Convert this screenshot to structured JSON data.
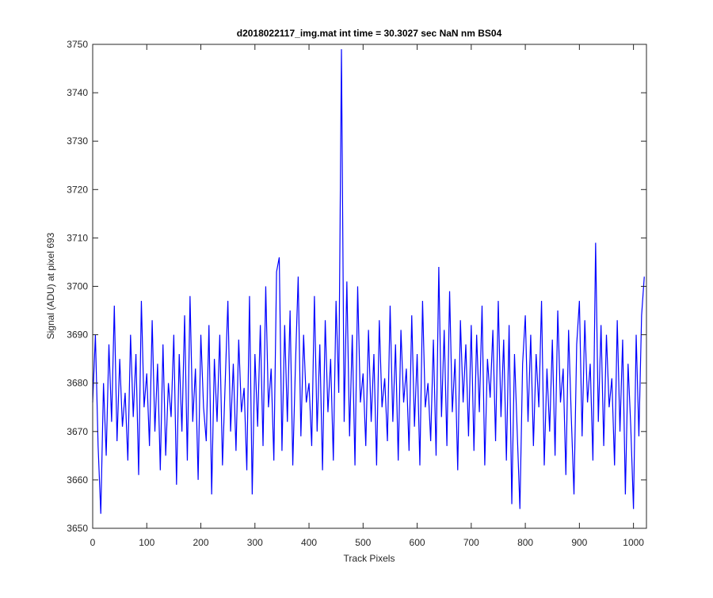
{
  "chart_data": {
    "type": "line",
    "title": "d2018022117_img.mat int time = 30.3027 sec  NaN nm BS04",
    "x_label": "Track Pixels",
    "y_label": "Signal (ADU) at pixel 693",
    "x": [
      0,
      5,
      10,
      15,
      20,
      25,
      30,
      35,
      40,
      45,
      50,
      55,
      60,
      65,
      70,
      75,
      80,
      85,
      90,
      95,
      100,
      105,
      110,
      115,
      120,
      125,
      130,
      135,
      140,
      145,
      150,
      155,
      160,
      165,
      170,
      175,
      180,
      185,
      190,
      195,
      200,
      205,
      210,
      215,
      220,
      225,
      230,
      235,
      240,
      245,
      250,
      255,
      260,
      265,
      270,
      275,
      280,
      285,
      290,
      295,
      300,
      305,
      310,
      315,
      320,
      325,
      330,
      335,
      340,
      345,
      350,
      355,
      360,
      365,
      370,
      375,
      380,
      385,
      390,
      395,
      400,
      405,
      410,
      415,
      420,
      425,
      430,
      435,
      440,
      445,
      450,
      455,
      460,
      465,
      470,
      475,
      480,
      485,
      490,
      495,
      500,
      505,
      510,
      515,
      520,
      525,
      530,
      535,
      540,
      545,
      550,
      555,
      560,
      565,
      570,
      575,
      580,
      585,
      590,
      595,
      600,
      605,
      610,
      615,
      620,
      625,
      630,
      635,
      640,
      645,
      650,
      655,
      660,
      665,
      670,
      675,
      680,
      685,
      690,
      695,
      700,
      705,
      710,
      715,
      720,
      725,
      730,
      735,
      740,
      745,
      750,
      755,
      760,
      765,
      770,
      775,
      780,
      785,
      790,
      795,
      800,
      805,
      810,
      815,
      820,
      825,
      830,
      835,
      840,
      845,
      850,
      855,
      860,
      865,
      870,
      875,
      880,
      885,
      890,
      895,
      900,
      905,
      910,
      915,
      920,
      925,
      930,
      935,
      940,
      945,
      950,
      955,
      960,
      965,
      970,
      975,
      980,
      985,
      990,
      995,
      1000,
      1005,
      1010,
      1015,
      1020
    ],
    "series": [
      {
        "name": "signal",
        "color": "#0000ff",
        "values": [
          3676,
          3690,
          3667,
          3653,
          3680,
          3665,
          3688,
          3672,
          3696,
          3668,
          3685,
          3671,
          3678,
          3664,
          3690,
          3673,
          3686,
          3661,
          3697,
          3675,
          3682,
          3667,
          3693,
          3670,
          3684,
          3662,
          3688,
          3665,
          3680,
          3673,
          3690,
          3659,
          3686,
          3670,
          3694,
          3664,
          3698,
          3672,
          3683,
          3660,
          3690,
          3675,
          3668,
          3692,
          3657,
          3685,
          3672,
          3690,
          3663,
          3680,
          3697,
          3670,
          3684,
          3666,
          3689,
          3674,
          3679,
          3662,
          3698,
          3657,
          3686,
          3671,
          3692,
          3667,
          3700,
          3675,
          3683,
          3664,
          3703,
          3706,
          3666,
          3692,
          3672,
          3695,
          3663,
          3684,
          3702,
          3669,
          3690,
          3676,
          3680,
          3667,
          3698,
          3670,
          3688,
          3662,
          3693,
          3674,
          3685,
          3664,
          3697,
          3678,
          3749,
          3672,
          3701,
          3669,
          3690,
          3663,
          3700,
          3676,
          3682,
          3667,
          3691,
          3672,
          3686,
          3663,
          3693,
          3675,
          3681,
          3668,
          3696,
          3672,
          3688,
          3664,
          3691,
          3676,
          3683,
          3666,
          3694,
          3671,
          3686,
          3663,
          3697,
          3675,
          3680,
          3668,
          3689,
          3665,
          3704,
          3673,
          3691,
          3667,
          3699,
          3674,
          3685,
          3662,
          3693,
          3676,
          3688,
          3669,
          3692,
          3666,
          3690,
          3674,
          3696,
          3663,
          3685,
          3677,
          3691,
          3668,
          3697,
          3673,
          3689,
          3664,
          3692,
          3655,
          3686,
          3670,
          3654,
          3684,
          3694,
          3672,
          3690,
          3667,
          3686,
          3675,
          3697,
          3663,
          3683,
          3670,
          3689,
          3665,
          3695,
          3676,
          3683,
          3661,
          3691,
          3673,
          3657,
          3688,
          3697,
          3669,
          3693,
          3676,
          3684,
          3664,
          3709,
          3672,
          3692,
          3667,
          3690,
          3675,
          3681,
          3663,
          3693,
          3670,
          3689,
          3657,
          3684,
          3671,
          3654,
          3690,
          3669,
          3694,
          3702
        ]
      }
    ],
    "xlim": [
      0,
      1024
    ],
    "xticks": [
      0,
      100,
      200,
      300,
      400,
      500,
      600,
      700,
      800,
      900,
      1000
    ],
    "ylim": [
      3650,
      3750
    ],
    "yticks": [
      3650,
      3660,
      3670,
      3680,
      3690,
      3700,
      3710,
      3720,
      3730,
      3740,
      3750
    ]
  }
}
